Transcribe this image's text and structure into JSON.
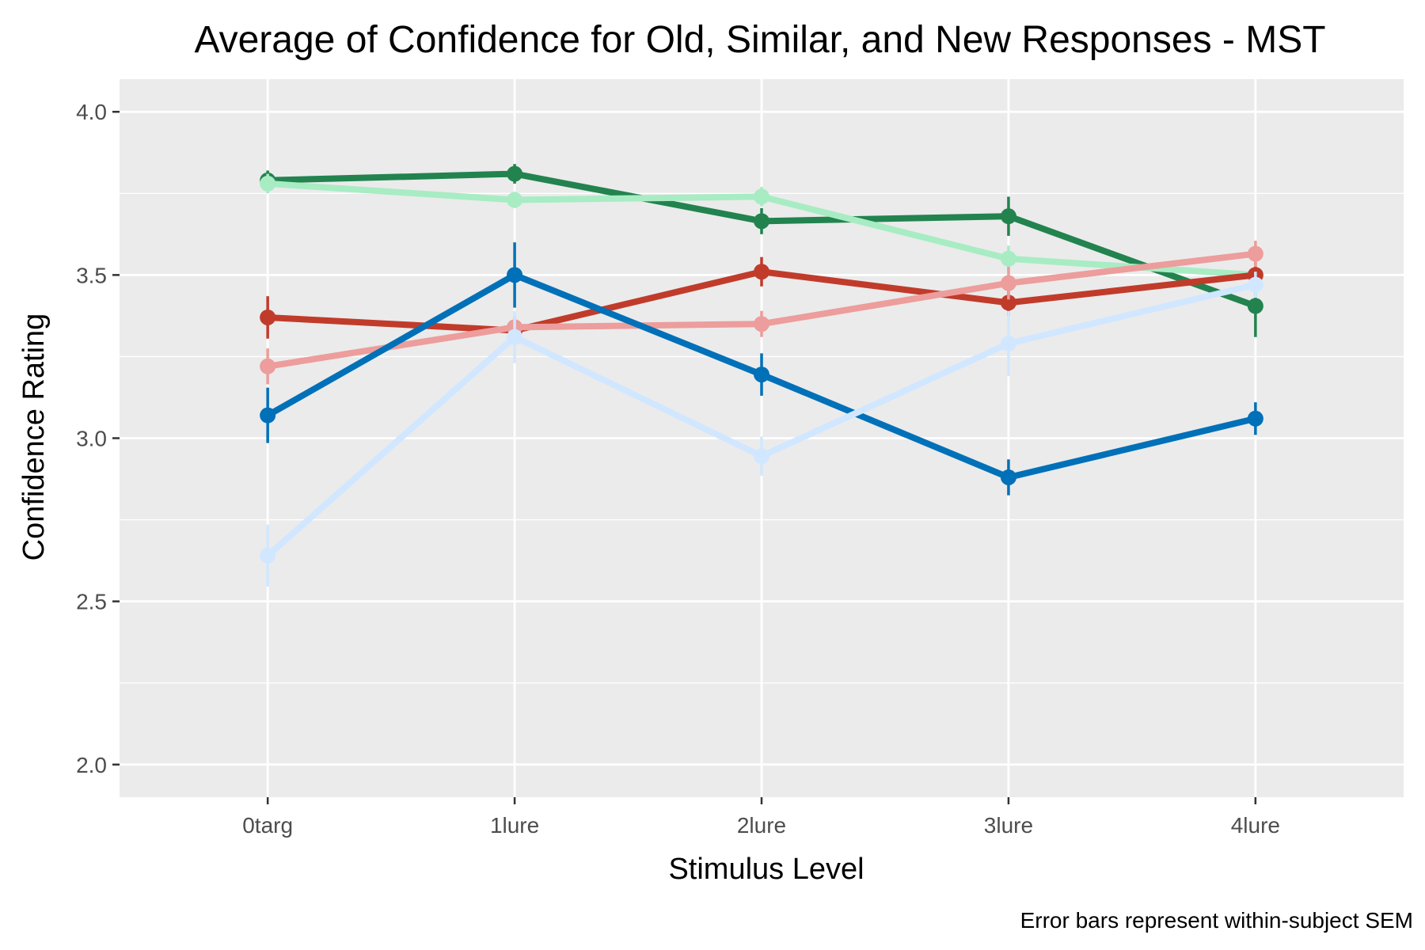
{
  "chart_data": {
    "type": "line",
    "title": "Average of Confidence for Old, Similar, and New Responses - MST",
    "xlabel": "Stimulus Level",
    "ylabel": "Confidence Rating",
    "caption": "Error bars represent within-subject SEM",
    "categories": [
      "0targ",
      "1lure",
      "2lure",
      "3lure",
      "4lure"
    ],
    "ylim": [
      1.9,
      4.1
    ],
    "yticks": [
      2.0,
      2.5,
      3.0,
      3.5,
      4.0
    ],
    "ytick_labels": [
      "2.0",
      "2.5",
      "3.0",
      "3.5",
      "4.0"
    ],
    "grid": true,
    "legend": "none",
    "background_color": "#ebebeb",
    "series": [
      {
        "color": "#22834f",
        "values": [
          3.79,
          3.81,
          3.665,
          3.68,
          3.405
        ],
        "errors": [
          0.03,
          0.03,
          0.04,
          0.06,
          0.095
        ]
      },
      {
        "color": "#a8ecc4",
        "values": [
          3.78,
          3.73,
          3.74,
          3.55,
          3.5
        ],
        "errors": [
          0.03,
          0.025,
          0.03,
          0.04,
          0.04
        ]
      },
      {
        "color": "#c13b2b",
        "values": [
          3.37,
          3.33,
          3.51,
          3.415,
          3.5
        ],
        "errors": [
          0.065,
          0.04,
          0.045,
          0.04,
          0.04
        ]
      },
      {
        "color": "#ec9d9c",
        "values": [
          3.22,
          3.34,
          3.35,
          3.475,
          3.565
        ],
        "errors": [
          0.055,
          0.035,
          0.04,
          0.05,
          0.04
        ]
      },
      {
        "color": "#0070b8",
        "values": [
          3.07,
          3.5,
          3.195,
          2.88,
          3.06
        ],
        "errors": [
          0.085,
          0.1,
          0.065,
          0.055,
          0.05
        ]
      },
      {
        "color": "#d1e7ff",
        "values": [
          2.64,
          3.31,
          2.945,
          3.29,
          3.47
        ],
        "errors": [
          0.095,
          0.08,
          0.06,
          0.1,
          0.04
        ]
      }
    ]
  }
}
